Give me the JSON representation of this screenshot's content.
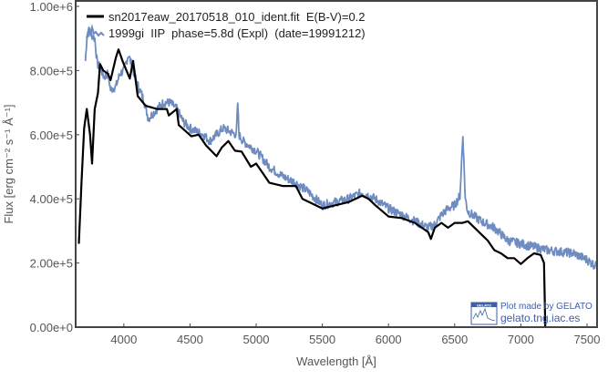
{
  "chart_data": {
    "type": "line",
    "title": "",
    "xlabel": "Wavelength [Å]",
    "ylabel": "Flux [erg cm⁻² s⁻¹ Å⁻¹]",
    "xlim": [
      3636,
      7576
    ],
    "ylim": [
      0,
      1017000
    ],
    "xticks": [
      4000,
      4500,
      5000,
      5500,
      6000,
      6500,
      7000,
      7500
    ],
    "xtick_labels": [
      "4000",
      "4500",
      "5000",
      "5500",
      "6000",
      "6500",
      "7000",
      "7500"
    ],
    "yticks": [
      0,
      200000,
      400000,
      600000,
      800000,
      1000000
    ],
    "ytick_labels": [
      "0.00e+0",
      "2.00e+5",
      "4.00e+5",
      "6.00e+5",
      "8.00e+5",
      "1.00e+6"
    ],
    "grid": false,
    "legend": "top-left",
    "series": [
      {
        "name": "sn2017eaw_20170518_010_ident.fit  E(B-V)=0.2",
        "color": "#000000",
        "x": [
          3660,
          3680,
          3700,
          3720,
          3745,
          3760,
          3780,
          3805,
          3820,
          3845,
          3880,
          3900,
          3940,
          3960,
          3990,
          4010,
          4045,
          4070,
          4105,
          4165,
          4250,
          4325,
          4340,
          4400,
          4415,
          4510,
          4565,
          4620,
          4700,
          4740,
          4790,
          4840,
          4890,
          4960,
          5000,
          5050,
          5100,
          5200,
          5300,
          5350,
          5400,
          5500,
          5600,
          5700,
          5800,
          5850,
          5900,
          6000,
          6100,
          6200,
          6300,
          6320,
          6350,
          6400,
          6450,
          6500,
          6560,
          6600,
          6650,
          6700,
          6750,
          6800,
          6850,
          6900,
          6950,
          7000,
          7050,
          7100,
          7150,
          7175,
          7185
        ],
        "y": [
          260000,
          450000,
          620000,
          680000,
          600000,
          510000,
          680000,
          730000,
          820000,
          800000,
          790000,
          770000,
          840000,
          866000,
          830000,
          810000,
          775000,
          830000,
          720000,
          690000,
          680000,
          680000,
          660000,
          680000,
          630000,
          595000,
          600000,
          567000,
          533000,
          560000,
          580000,
          550000,
          547000,
          500000,
          510000,
          480000,
          450000,
          440000,
          440000,
          400000,
          390000,
          370000,
          380000,
          390000,
          410000,
          400000,
          380000,
          345000,
          340000,
          325000,
          296000,
          275000,
          310000,
          325000,
          310000,
          325000,
          325000,
          330000,
          310000,
          290000,
          270000,
          240000,
          230000,
          215000,
          215000,
          197000,
          215000,
          230000,
          225000,
          200000,
          0
        ]
      },
      {
        "name": "1999gi  IIP  phase=5.8d (Expl)  (date=19991212)",
        "color": "#6f8cc0",
        "x": [
          3710,
          3720,
          3740,
          3760,
          3780,
          3800,
          3820,
          3850,
          3880,
          3900,
          3940,
          3970,
          4000,
          4035,
          4100,
          4150,
          4185,
          4250,
          4300,
          4350,
          4400,
          4450,
          4500,
          4600,
          4650,
          4700,
          4750,
          4800,
          4850,
          4861,
          4870,
          4900,
          5000,
          5100,
          5200,
          5300,
          5400,
          5500,
          5600,
          5700,
          5800,
          5900,
          6000,
          6100,
          6200,
          6300,
          6350,
          6400,
          6450,
          6500,
          6540,
          6562,
          6580,
          6600,
          6700,
          6800,
          6900,
          7000,
          7100,
          7200,
          7300,
          7400,
          7500,
          7570
        ],
        "y": [
          830000,
          900000,
          930000,
          910000,
          900000,
          820000,
          810000,
          780000,
          790000,
          740000,
          750000,
          790000,
          800000,
          850000,
          760000,
          710000,
          650000,
          680000,
          700000,
          700000,
          680000,
          640000,
          620000,
          600000,
          580000,
          600000,
          620000,
          610000,
          600000,
          700000,
          600000,
          580000,
          550000,
          500000,
          470000,
          450000,
          420000,
          380000,
          390000,
          400000,
          420000,
          400000,
          370000,
          350000,
          330000,
          310000,
          320000,
          350000,
          370000,
          380000,
          410000,
          600000,
          400000,
          360000,
          330000,
          310000,
          270000,
          260000,
          250000,
          240000,
          235000,
          230000,
          210000,
          190000
        ]
      }
    ]
  },
  "watermark": {
    "logo_text": "GELATO",
    "line1": "Plot made by GELATO",
    "line2": "gelato.tng.iac.es",
    "color": "#3f5fa8"
  }
}
